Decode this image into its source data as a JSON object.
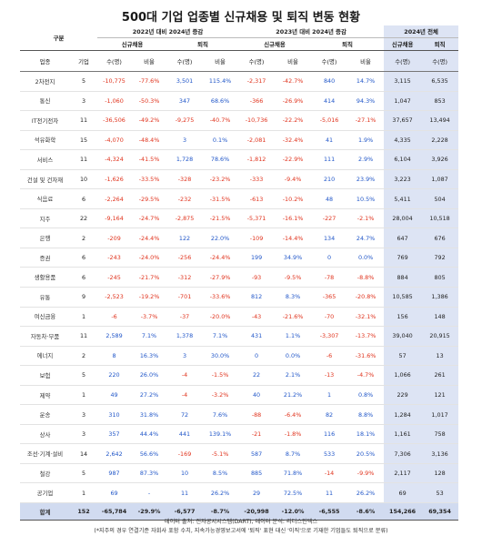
{
  "title": "500대 기업 업종별 신규채용 및 퇴직 변동 현황",
  "header": {
    "group": "구분",
    "period1": "2022년 대비 2024년 증감",
    "period2": "2023년 대비 2024년 증감",
    "period3": "2024년 전체",
    "hire": "신규채용",
    "retire": "퇴직",
    "industry": "업종",
    "companies": "기업",
    "count": "수(명)",
    "ratio": "비율"
  },
  "rows": [
    {
      "ind": "2차전지",
      "n": "5",
      "a": "-10,775",
      "b": "-77.6%",
      "c": "3,501",
      "d": "115.4%",
      "e": "-2,317",
      "f": "-42.7%",
      "g": "840",
      "h": "14.7%",
      "i": "3,115",
      "j": "6,535"
    },
    {
      "ind": "통신",
      "n": "3",
      "a": "-1,060",
      "b": "-50.3%",
      "c": "347",
      "d": "68.6%",
      "e": "-366",
      "f": "-26.9%",
      "g": "414",
      "h": "94.3%",
      "i": "1,047",
      "j": "853"
    },
    {
      "ind": "IT전기전자",
      "n": "11",
      "a": "-36,506",
      "b": "-49.2%",
      "c": "-9,275",
      "d": "-40.7%",
      "e": "-10,736",
      "f": "-22.2%",
      "g": "-5,016",
      "h": "-27.1%",
      "i": "37,657",
      "j": "13,494"
    },
    {
      "ind": "석유화학",
      "n": "15",
      "a": "-4,070",
      "b": "-48.4%",
      "c": "3",
      "d": "0.1%",
      "e": "-2,081",
      "f": "-32.4%",
      "g": "41",
      "h": "1.9%",
      "i": "4,335",
      "j": "2,228"
    },
    {
      "ind": "서비스",
      "n": "11",
      "a": "-4,324",
      "b": "-41.5%",
      "c": "1,728",
      "d": "78.6%",
      "e": "-1,812",
      "f": "-22.9%",
      "g": "111",
      "h": "2.9%",
      "i": "6,104",
      "j": "3,926"
    },
    {
      "ind": "건설 및 건자재",
      "n": "10",
      "a": "-1,626",
      "b": "-33.5%",
      "c": "-328",
      "d": "-23.2%",
      "e": "-333",
      "f": "-9.4%",
      "g": "210",
      "h": "23.9%",
      "i": "3,223",
      "j": "1,087"
    },
    {
      "ind": "식음료",
      "n": "6",
      "a": "-2,264",
      "b": "-29.5%",
      "c": "-232",
      "d": "-31.5%",
      "e": "-613",
      "f": "-10.2%",
      "g": "48",
      "h": "10.5%",
      "i": "5,411",
      "j": "504"
    },
    {
      "ind": "지주",
      "n": "22",
      "a": "-9,164",
      "b": "-24.7%",
      "c": "-2,875",
      "d": "-21.5%",
      "e": "-5,371",
      "f": "-16.1%",
      "g": "-227",
      "h": "-2.1%",
      "i": "28,004",
      "j": "10,518"
    },
    {
      "ind": "은행",
      "n": "2",
      "a": "-209",
      "b": "-24.4%",
      "c": "122",
      "d": "22.0%",
      "e": "-109",
      "f": "-14.4%",
      "g": "134",
      "h": "24.7%",
      "i": "647",
      "j": "676"
    },
    {
      "ind": "증권",
      "n": "6",
      "a": "-243",
      "b": "-24.0%",
      "c": "-256",
      "d": "-24.4%",
      "e": "199",
      "f": "34.9%",
      "g": "0",
      "h": "0.0%",
      "i": "769",
      "j": "792"
    },
    {
      "ind": "생활용품",
      "n": "6",
      "a": "-245",
      "b": "-21.7%",
      "c": "-312",
      "d": "-27.9%",
      "e": "-93",
      "f": "-9.5%",
      "g": "-78",
      "h": "-8.8%",
      "i": "884",
      "j": "805"
    },
    {
      "ind": "유통",
      "n": "9",
      "a": "-2,523",
      "b": "-19.2%",
      "c": "-701",
      "d": "-33.6%",
      "e": "812",
      "f": "8.3%",
      "g": "-365",
      "h": "-20.8%",
      "i": "10,585",
      "j": "1,386"
    },
    {
      "ind": "여신금융",
      "n": "1",
      "a": "-6",
      "b": "-3.7%",
      "c": "-37",
      "d": "-20.0%",
      "e": "-43",
      "f": "-21.6%",
      "g": "-70",
      "h": "-32.1%",
      "i": "156",
      "j": "148"
    },
    {
      "ind": "자동차·부품",
      "n": "11",
      "a": "2,589",
      "b": "7.1%",
      "c": "1,378",
      "d": "7.1%",
      "e": "431",
      "f": "1.1%",
      "g": "-3,307",
      "h": "-13.7%",
      "i": "39,040",
      "j": "20,915"
    },
    {
      "ind": "에너지",
      "n": "2",
      "a": "8",
      "b": "16.3%",
      "c": "3",
      "d": "30.0%",
      "e": "0",
      "f": "0.0%",
      "g": "-6",
      "h": "-31.6%",
      "i": "57",
      "j": "13"
    },
    {
      "ind": "보험",
      "n": "5",
      "a": "220",
      "b": "26.0%",
      "c": "-4",
      "d": "-1.5%",
      "e": "22",
      "f": "2.1%",
      "g": "-13",
      "h": "-4.7%",
      "i": "1,066",
      "j": "261"
    },
    {
      "ind": "제약",
      "n": "1",
      "a": "49",
      "b": "27.2%",
      "c": "-4",
      "d": "-3.2%",
      "e": "40",
      "f": "21.2%",
      "g": "1",
      "h": "0.8%",
      "i": "229",
      "j": "121"
    },
    {
      "ind": "운송",
      "n": "3",
      "a": "310",
      "b": "31.8%",
      "c": "72",
      "d": "7.6%",
      "e": "-88",
      "f": "-6.4%",
      "g": "82",
      "h": "8.8%",
      "i": "1,284",
      "j": "1,017"
    },
    {
      "ind": "상사",
      "n": "3",
      "a": "357",
      "b": "44.4%",
      "c": "441",
      "d": "139.1%",
      "e": "-21",
      "f": "-1.8%",
      "g": "116",
      "h": "18.1%",
      "i": "1,161",
      "j": "758"
    },
    {
      "ind": "조선·기계·설비",
      "n": "14",
      "a": "2,642",
      "b": "56.6%",
      "c": "-169",
      "d": "-5.1%",
      "e": "587",
      "f": "8.7%",
      "g": "533",
      "h": "20.5%",
      "i": "7,306",
      "j": "3,136"
    },
    {
      "ind": "철강",
      "n": "5",
      "a": "987",
      "b": "87.3%",
      "c": "10",
      "d": "8.5%",
      "e": "885",
      "f": "71.8%",
      "g": "-14",
      "h": "-9.9%",
      "i": "2,117",
      "j": "128"
    },
    {
      "ind": "공기업",
      "n": "1",
      "a": "69",
      "b": "-",
      "c": "11",
      "d": "26.2%",
      "e": "29",
      "f": "72.5%",
      "g": "11",
      "h": "26.2%",
      "i": "69",
      "j": "53"
    }
  ],
  "total": {
    "ind": "합계",
    "n": "152",
    "a": "-65,784",
    "b": "-29.9%",
    "c": "-6,577",
    "d": "-8.7%",
    "e": "-20,998",
    "f": "-12.0%",
    "g": "-6,555",
    "h": "-8.6%",
    "i": "154,266",
    "j": "69,354"
  },
  "footer": {
    "source": "데이터 출처: 전자공시시스템(DART), 데이터 분석: 리더스인덱스",
    "note": "(*지주의 경우 연결기준 자회사 포함 수치, 지속가능경영보고서에 '퇴직' 표현 대신 '이직'으로 기재한 기업들도 퇴직으로 분류)"
  },
  "colors": {
    "negative": "#e0321c",
    "positive": "#1f55c8",
    "highlight": "#dde4f4",
    "total": "#d1dbf0"
  }
}
